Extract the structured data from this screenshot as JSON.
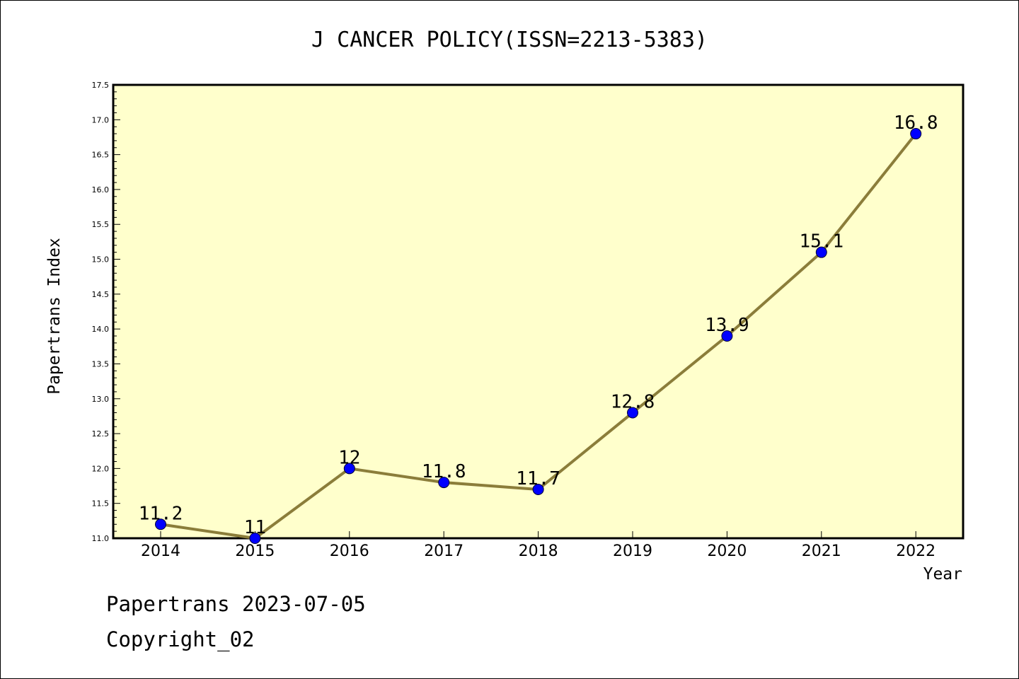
{
  "chart_data": {
    "type": "line",
    "title": "J CANCER POLICY(ISSN=2213-5383)",
    "xlabel": "Year",
    "ylabel": "Papertrans Index",
    "categories": [
      "2014",
      "2015",
      "2016",
      "2017",
      "2018",
      "2019",
      "2020",
      "2021",
      "2022"
    ],
    "values": [
      11.2,
      11,
      12,
      11.8,
      11.7,
      12.8,
      13.9,
      15.1,
      16.8
    ],
    "data_labels": [
      "11.2",
      "11",
      "12",
      "11.8",
      "11.7",
      "12.8",
      "13.9",
      "15.1",
      "16.8"
    ],
    "ylim": [
      11.0,
      17.5
    ],
    "yticks": [
      "11.0",
      "11.5",
      "12.0",
      "12.5",
      "13.0",
      "13.5",
      "14.0",
      "14.5",
      "15.0",
      "15.5",
      "16.0",
      "16.5",
      "17.0",
      "17.5"
    ],
    "grid": false,
    "legend": "none",
    "colors": {
      "plot_background": "#ffffcc",
      "line": "#8b7d3a",
      "marker": "#0000ff"
    }
  },
  "footer": {
    "line1": "Papertrans 2023-07-05",
    "line2": "Copyright_02"
  }
}
